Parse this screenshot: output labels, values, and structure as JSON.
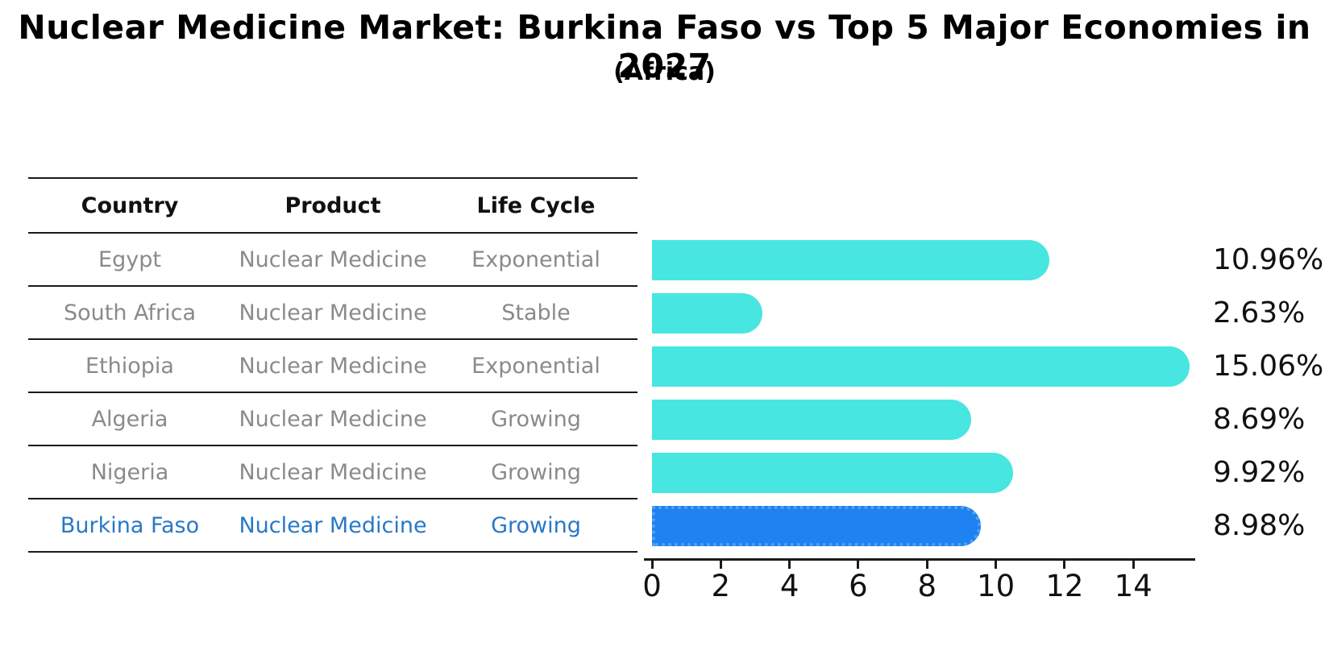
{
  "title": "Nuclear Medicine Market: Burkina Faso vs Top 5 Major Economies in 2027",
  "subtitle": "(Africa)",
  "table": {
    "headers": [
      "Country",
      "Product",
      "Life Cycle"
    ],
    "rows": [
      {
        "country": "Egypt",
        "product": "Nuclear Medicine",
        "life_cycle": "Exponential",
        "highlight": false
      },
      {
        "country": "South Africa",
        "product": "Nuclear Medicine",
        "life_cycle": "Stable",
        "highlight": false
      },
      {
        "country": "Ethiopia",
        "product": "Nuclear Medicine",
        "life_cycle": "Exponential",
        "highlight": false
      },
      {
        "country": "Algeria",
        "product": "Nuclear Medicine",
        "life_cycle": "Growing",
        "highlight": false
      },
      {
        "country": "Nigeria",
        "product": "Nuclear Medicine",
        "life_cycle": "Growing",
        "highlight": false
      },
      {
        "country": "Burkina Faso",
        "product": "Nuclear Medicine",
        "life_cycle": "Growing",
        "highlight": true
      }
    ]
  },
  "chart_data": {
    "type": "bar",
    "orientation": "horizontal",
    "title": "Nuclear Medicine Market: Burkina Faso vs Top 5 Major Economies in 2027 (Africa)",
    "categories": [
      "Egypt",
      "South Africa",
      "Ethiopia",
      "Algeria",
      "Nigeria",
      "Burkina Faso"
    ],
    "values": [
      10.96,
      2.63,
      15.06,
      8.69,
      9.92,
      8.98
    ],
    "value_labels": [
      "10.96%",
      "2.63%",
      "15.06%",
      "8.69%",
      "9.92%",
      "8.98%"
    ],
    "unit": "percent",
    "x_ticks": [
      0,
      2,
      4,
      6,
      8,
      10,
      12,
      14
    ],
    "xlim": [
      0,
      15.8
    ],
    "grid": false,
    "legend": false,
    "highlight_index": 5
  },
  "colors": {
    "bar": "#47e6e0",
    "highlight_bar": "#1e82f0",
    "highlight_bar_border": "#55a0f2",
    "highlight_text": "#2878c8",
    "table_text": "#8a8a8a",
    "axis": "#1a1a1a",
    "label_text": "#111111"
  }
}
